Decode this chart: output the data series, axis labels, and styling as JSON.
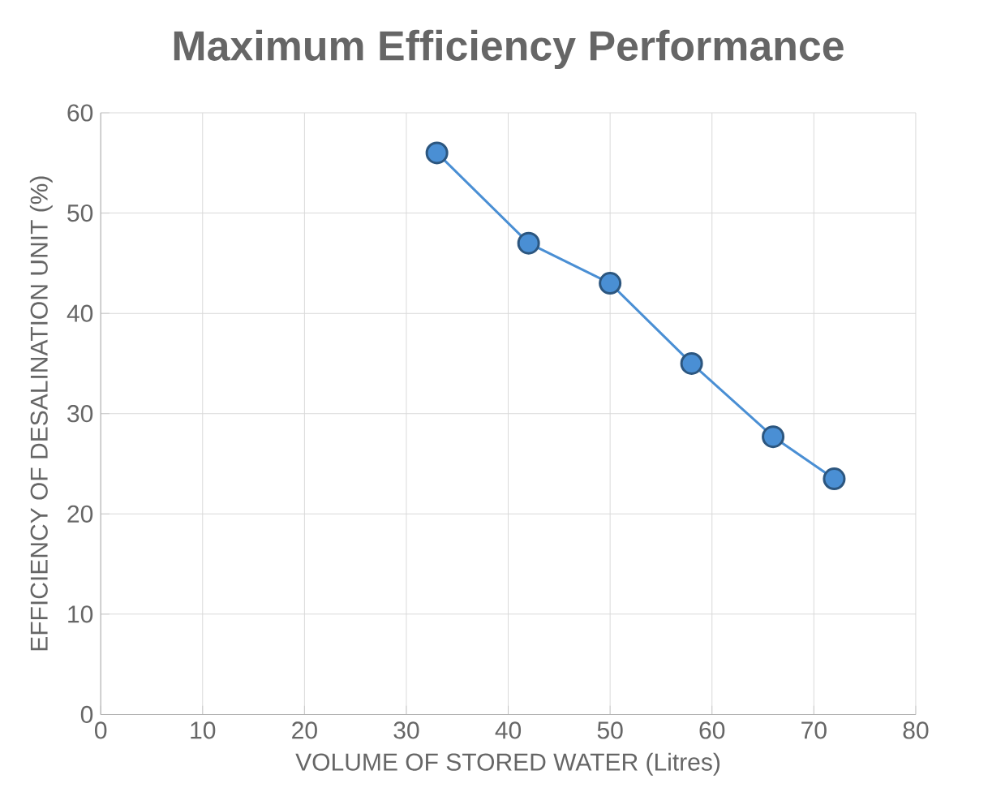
{
  "chart_data": {
    "type": "line",
    "title": "Maximum Efficiency Performance",
    "xlabel": "VOLUME OF STORED WATER (Litres)",
    "ylabel": "EFFICIENCY OF DESALINATION UNIT (%)",
    "x": [
      33,
      42,
      50,
      58,
      66,
      72
    ],
    "series": [
      {
        "color": "#4a8fd4",
        "values": [
          56,
          47,
          43,
          35,
          27.7,
          23.5
        ]
      }
    ],
    "xlim": [
      0,
      80
    ],
    "xticks": [
      0,
      10,
      20,
      30,
      40,
      50,
      60,
      70,
      80
    ],
    "ylim": [
      0,
      60
    ],
    "yticks": [
      0,
      10,
      20,
      30,
      40,
      50,
      60
    ],
    "grid": true,
    "marker": "circle",
    "line_style": "solid"
  }
}
